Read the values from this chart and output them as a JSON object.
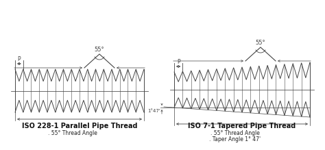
{
  "bg_color": "#ffffff",
  "line_color": "#444444",
  "title1": "ISO 228-1 Parallel Pipe Thread",
  "sub1_line1": ". 55° Thread Angle",
  "title2": "ISO 7-1 Tapered Pipe Thread",
  "sub2_line1": ". 55° Thread Angle",
  "sub2_line2": ". Taper Angle 1° 47'",
  "angle_label": "55°",
  "p_label": "P",
  "taper_label": "1°47'",
  "figsize": [
    4.74,
    2.19
  ],
  "dpi": 100,
  "n_teeth": 16,
  "lw": 0.7
}
